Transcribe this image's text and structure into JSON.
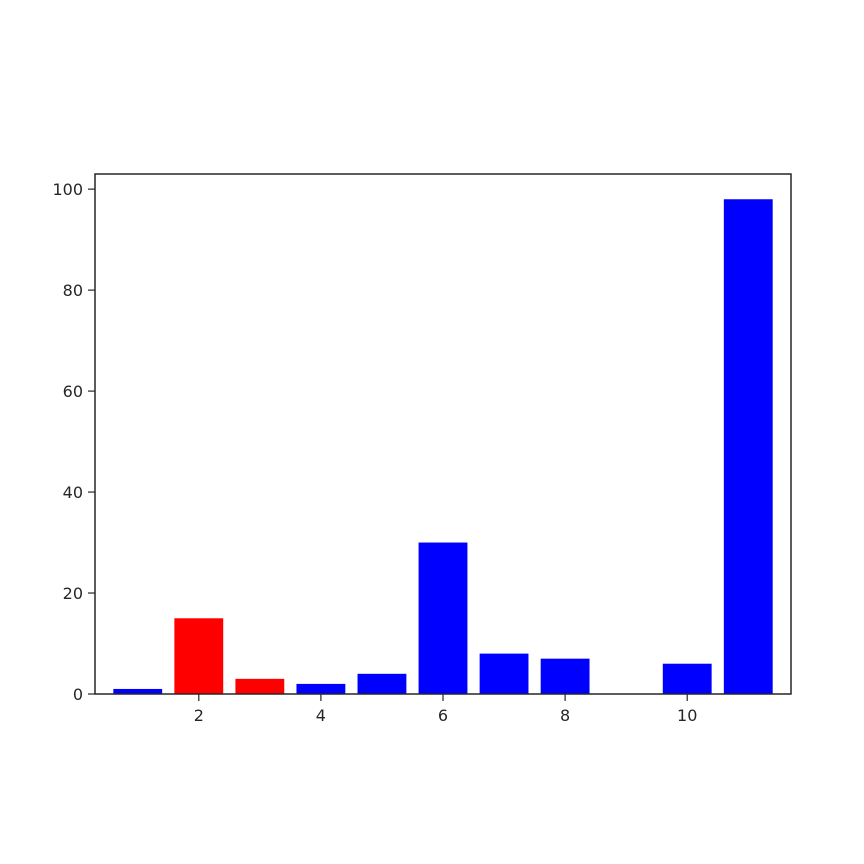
{
  "chart_data": {
    "type": "bar",
    "title": "",
    "xlabel": "",
    "ylabel": "",
    "x": [
      1,
      2,
      3,
      4,
      5,
      6,
      7,
      8,
      9,
      10,
      11
    ],
    "values": [
      1,
      15,
      3,
      2,
      4,
      30,
      8,
      7,
      0,
      6,
      98
    ],
    "bar_colors": [
      "#0000ff",
      "#ff0000",
      "#ff0000",
      "#0000ff",
      "#0000ff",
      "#0000ff",
      "#0000ff",
      "#0000ff",
      "#0000ff",
      "#0000ff",
      "#0000ff"
    ],
    "xlim": [
      0.3,
      11.7
    ],
    "ylim": [
      0,
      103
    ],
    "xticks": [
      2,
      4,
      6,
      8,
      10
    ],
    "xtick_labels": [
      "2",
      "4",
      "6",
      "8",
      "10"
    ],
    "yticks": [
      0,
      20,
      40,
      60,
      80,
      100
    ],
    "ytick_labels": [
      "0",
      "20",
      "40",
      "60",
      "80",
      "100"
    ],
    "grid": false,
    "legend": "none"
  }
}
